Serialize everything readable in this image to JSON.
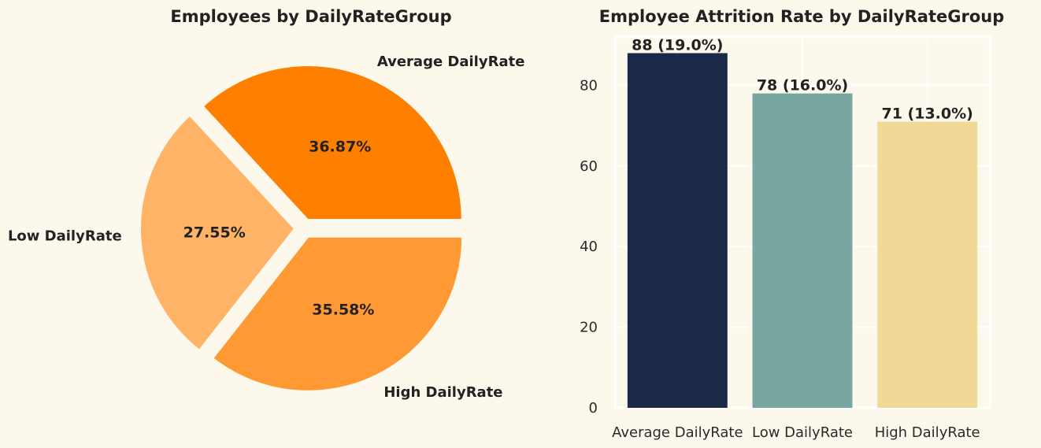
{
  "background": "#fdf8ec",
  "chart_data": [
    {
      "type": "pie",
      "title": "Employees by DailyRateGroup",
      "categories": [
        "Average DailyRate",
        "Low DailyRate",
        "High DailyRate"
      ],
      "values": [
        36.87,
        27.55,
        35.58
      ],
      "value_labels": [
        "36.87%",
        "27.55%",
        "35.58%"
      ],
      "colors": [
        "#ff8000",
        "#ffb366",
        "#ff9933"
      ],
      "exploded": true
    },
    {
      "type": "bar",
      "title": "Employee Attrition Rate by DailyRateGroup",
      "categories": [
        "Average DailyRate",
        "Low DailyRate",
        "High DailyRate"
      ],
      "values": [
        88,
        78,
        71
      ],
      "value_labels": [
        "88 (19.0%)",
        "78 (16.0%)",
        "71 (13.0%)"
      ],
      "colors": [
        "#1b2949",
        "#78a6a0",
        "#f0d896"
      ],
      "xlabel": "",
      "ylabel": "",
      "ylim": [
        0,
        92
      ],
      "yticks": [
        0,
        20,
        40,
        60,
        80
      ],
      "grid": true,
      "background_color": "#fdf8ec",
      "grid_color": "#ffffff"
    }
  ]
}
